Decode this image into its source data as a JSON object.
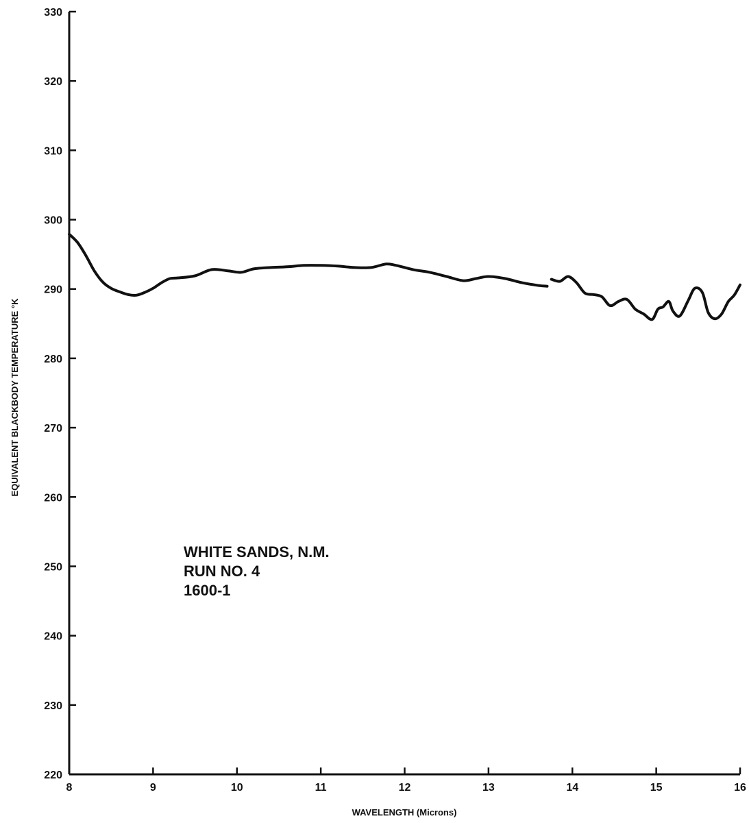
{
  "chart_data": {
    "type": "line",
    "xlabel": "WAVELENGTH (Microns)",
    "ylabel": "EQUIVALENT BLACKBODY TEMPERATURE °K",
    "xlim": [
      8,
      16
    ],
    "ylim": [
      220,
      330
    ],
    "x_ticks": [
      "8",
      "9",
      "10",
      "11",
      "12",
      "13",
      "14",
      "15",
      "16"
    ],
    "y_ticks": [
      "220",
      "230",
      "240",
      "250",
      "260",
      "270",
      "280",
      "290",
      "300",
      "310",
      "320",
      "330"
    ],
    "grid": false,
    "line_color": "#111111",
    "annotations": [
      "WHITE SANDS, N.M.",
      "RUN NO. 4",
      "1600-1"
    ],
    "segments": [
      {
        "x": [
          8.0,
          8.1,
          8.2,
          8.3,
          8.4,
          8.5,
          8.6,
          8.7,
          8.8,
          8.9,
          9.0,
          9.1,
          9.2,
          9.3,
          9.5,
          9.7,
          9.9,
          10.05,
          10.2,
          10.4,
          10.6,
          10.8,
          11.0,
          11.2,
          11.4,
          11.6,
          11.78,
          11.9,
          12.1,
          12.3,
          12.5,
          12.7,
          12.85,
          13.0,
          13.2,
          13.4,
          13.6,
          13.7
        ],
        "y": [
          297.9,
          296.7,
          294.8,
          292.6,
          291.0,
          290.1,
          289.6,
          289.2,
          289.1,
          289.5,
          290.1,
          290.9,
          291.5,
          291.6,
          291.9,
          292.8,
          292.6,
          292.4,
          292.9,
          293.1,
          293.2,
          293.4,
          293.4,
          293.3,
          293.1,
          293.1,
          293.6,
          293.4,
          292.8,
          292.4,
          291.8,
          291.2,
          291.5,
          291.8,
          291.5,
          290.9,
          290.5,
          290.4
        ]
      },
      {
        "x": [
          13.75,
          13.85,
          13.95,
          14.05,
          14.15,
          14.25,
          14.35,
          14.45,
          14.55,
          14.65,
          14.75,
          14.85,
          14.95,
          15.02,
          15.08,
          15.15,
          15.2,
          15.28,
          15.38,
          15.46,
          15.55,
          15.62,
          15.7,
          15.78,
          15.86,
          15.93,
          16.0
        ],
        "y": [
          291.4,
          291.1,
          291.8,
          290.9,
          289.4,
          289.2,
          288.9,
          287.6,
          288.2,
          288.5,
          287.1,
          286.4,
          285.6,
          287.1,
          287.4,
          288.2,
          286.8,
          286.1,
          288.3,
          290.1,
          289.5,
          286.6,
          285.7,
          286.4,
          288.2,
          289.1,
          290.6
        ]
      }
    ]
  }
}
